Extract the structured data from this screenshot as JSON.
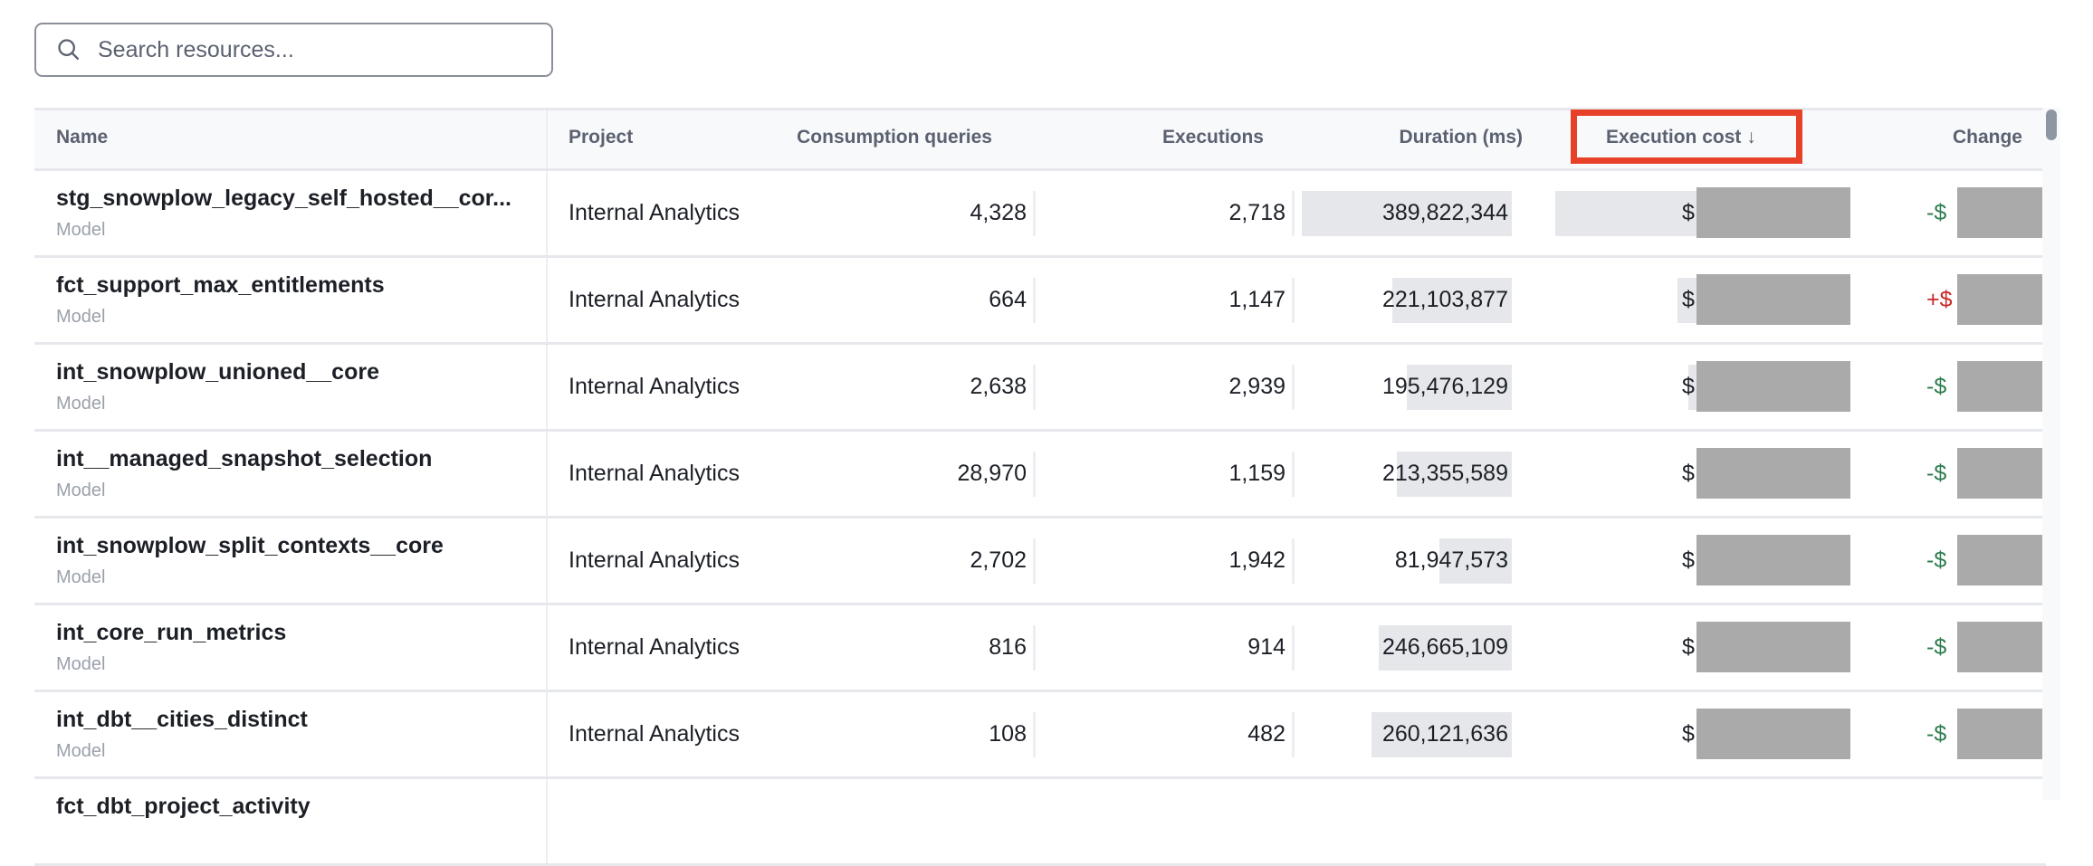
{
  "search": {
    "placeholder": "Search resources...",
    "value": ""
  },
  "columns": {
    "name": "Name",
    "project": "Project",
    "consumption": "Consumption queries",
    "executions": "Executions",
    "duration": "Duration (ms)",
    "cost": "Execution cost",
    "sort_indicator": "↓",
    "change": "Change"
  },
  "sort": {
    "column": "Execution cost",
    "direction": "descending"
  },
  "colors": {
    "highlight": "#e8412a",
    "negative_change": "#2e7d4f",
    "positive_change": "#c62828",
    "redaction": "#aaaaaa"
  },
  "rows": [
    {
      "name": "stg_snowplow_legacy_self_hosted__cor...",
      "type": "Model",
      "project": "Internal Analytics",
      "consumption": "4,328",
      "executions": "2,718",
      "duration": "389,822,344",
      "cost_prefix": "$",
      "change_prefix": "-$",
      "cost_level": 1.0
    },
    {
      "name": "fct_support_max_entitlements",
      "type": "Model",
      "project": "Internal Analytics",
      "consumption": "664",
      "executions": "1,147",
      "duration": "221,103,877",
      "cost_prefix": "$",
      "change_prefix": "+$",
      "cost_level": 0.55
    },
    {
      "name": "int_snowplow_unioned__core",
      "type": "Model",
      "project": "Internal Analytics",
      "consumption": "2,638",
      "executions": "2,939",
      "duration": "195,476,129",
      "cost_prefix": "$",
      "change_prefix": "-$",
      "cost_level": 0.51
    },
    {
      "name": "int__managed_snapshot_selection",
      "type": "Model",
      "project": "Internal Analytics",
      "consumption": "28,970",
      "executions": "1,159",
      "duration": "213,355,589",
      "cost_prefix": "$",
      "change_prefix": "-$",
      "cost_level": 0.47
    },
    {
      "name": "int_snowplow_split_contexts__core",
      "type": "Model",
      "project": "Internal Analytics",
      "consumption": "2,702",
      "executions": "1,942",
      "duration": "81,947,573",
      "cost_prefix": "$",
      "change_prefix": "-$",
      "cost_level": 0.46
    },
    {
      "name": "int_core_run_metrics",
      "type": "Model",
      "project": "Internal Analytics",
      "consumption": "816",
      "executions": "914",
      "duration": "246,665,109",
      "cost_prefix": "$",
      "change_prefix": "-$",
      "cost_level": 0.3
    },
    {
      "name": "int_dbt__cities_distinct",
      "type": "Model",
      "project": "Internal Analytics",
      "consumption": "108",
      "executions": "482",
      "duration": "260,121,636",
      "cost_prefix": "$",
      "change_prefix": "-$",
      "cost_level": 0.3
    },
    {
      "name": "fct_dbt_project_activity",
      "type": "",
      "project": "",
      "consumption": "",
      "executions": "",
      "duration": "",
      "cost_prefix": "",
      "change_prefix": "",
      "cost_level": 0.3
    }
  ]
}
